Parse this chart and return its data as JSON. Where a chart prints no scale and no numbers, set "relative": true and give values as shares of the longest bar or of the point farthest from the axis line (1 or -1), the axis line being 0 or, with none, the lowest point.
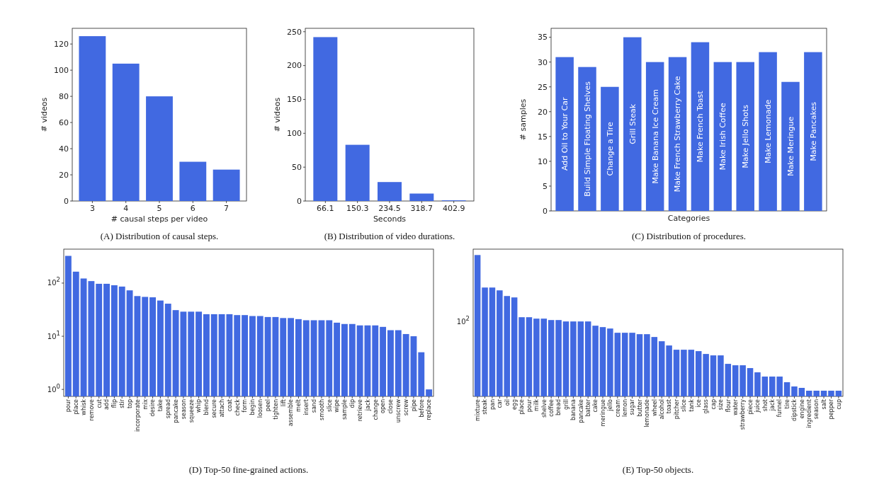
{
  "chart_data": [
    {
      "type": "bar",
      "categories": [
        "3",
        "4",
        "5",
        "6",
        "7"
      ],
      "values": [
        126,
        105,
        80,
        30,
        24
      ],
      "color": "#4169e1",
      "ylim": [
        0,
        132
      ],
      "yticks": [
        0,
        20,
        40,
        60,
        80,
        100,
        120
      ],
      "xlabel": "# causal steps per video",
      "ylabel": "# videos",
      "annotations": [
        "(A) Distribution of causal steps."
      ],
      "grid": false
    },
    {
      "type": "bar",
      "categories": [
        "66.1",
        "150.3",
        "234.5",
        "318.7",
        "402.9"
      ],
      "values": [
        242,
        83,
        28,
        11,
        1
      ],
      "color": "#4169e1",
      "ylim": [
        0,
        255
      ],
      "yticks": [
        0,
        50,
        100,
        150,
        200,
        250
      ],
      "xlabel": "Seconds",
      "ylabel": "# videos",
      "annotations": [
        "(B) Distribution of video durations."
      ],
      "grid": false
    },
    {
      "type": "bar",
      "categories": [
        "Add Oil to Your Car",
        "Build Simple Floating Shelves",
        "Change a Tire",
        "Grill Steak",
        "Make Banana Ice Cream",
        "Make French Strawberry Cake",
        "Make French Toast",
        "Make Irish Coffee",
        "Make Jello Shots",
        "Make Lemonade",
        "Make Meringue",
        "Make Pancakes"
      ],
      "values": [
        31,
        29,
        25,
        35,
        30,
        31,
        34,
        30,
        30,
        32,
        26,
        32
      ],
      "color": "#4169e1",
      "ylim": [
        0,
        36.8
      ],
      "yticks": [
        0,
        5,
        10,
        15,
        20,
        25,
        30,
        35
      ],
      "xlabel": "Categories",
      "ylabel": "# samples",
      "annotations": [
        "(C) Distribution of procedures."
      ],
      "grid": false
    },
    {
      "type": "bar",
      "log": true,
      "categories": [
        "pour",
        "place",
        "whisk",
        "remove",
        "cut",
        "add",
        "flip",
        "stir",
        "top",
        "incorporate",
        "mix",
        "desire",
        "take",
        "spread",
        "pancake",
        "season",
        "squeeze",
        "whip",
        "blend",
        "secure",
        "attach",
        "coat",
        "check",
        "form",
        "begin",
        "loosen",
        "peel",
        "tighten",
        "lift",
        "assemble",
        "melt",
        "insert",
        "sand",
        "smooth",
        "slice",
        "wipe",
        "sample",
        "dip",
        "retrieve",
        "jack",
        "change",
        "open",
        "close",
        "unscrew",
        "screw",
        "pipe",
        "before",
        "replace"
      ],
      "values": [
        325,
        164,
        122,
        109,
        97,
        97,
        91,
        86,
        73,
        57,
        55,
        54,
        47,
        41,
        31,
        29,
        29,
        29,
        26,
        26,
        26,
        26,
        25,
        25,
        24,
        24,
        23,
        23,
        22,
        22,
        21,
        20,
        20,
        20,
        20,
        18,
        17,
        17,
        16,
        16,
        16,
        15,
        13,
        13,
        11,
        10,
        5,
        1
      ],
      "color": "#4169e1",
      "ylim": [
        0.74,
        435
      ],
      "yticks": [
        {
          "value": 1,
          "label": "10$^{0}$"
        },
        {
          "value": 10,
          "label": "10$^{1}$"
        },
        {
          "value": 100,
          "label": "10$^{2}$"
        }
      ],
      "annotations": [
        "(D) Top-50 fine-grained actions."
      ],
      "grid": false
    },
    {
      "type": "bar",
      "relative": true,
      "categories": [
        "mixture",
        "steak",
        "pan",
        "car",
        "oil",
        "egg",
        "place",
        "pour",
        "milk",
        "shelve",
        "coffee",
        "bread",
        "grill",
        "banana",
        "pancake",
        "batter",
        "cake",
        "meringue",
        "jello",
        "cream",
        "lemon",
        "sugar",
        "butter",
        "lemonade",
        "wheel",
        "alcohol",
        "toast",
        "pitcher",
        "slice",
        "tank",
        "ice",
        "glass",
        "cap",
        "size",
        "flour",
        "water",
        "strawberry",
        "piece",
        "juice",
        "shot",
        "jack",
        "funnel",
        "tire",
        "dipstick",
        "engine",
        "ingredient",
        "season",
        "salt",
        "pepper",
        "cup"
      ],
      "values": [
        1,
        0.77,
        0.77,
        0.75,
        0.71,
        0.7,
        0.56,
        0.56,
        0.55,
        0.55,
        0.54,
        0.54,
        0.53,
        0.53,
        0.53,
        0.53,
        0.5,
        0.49,
        0.48,
        0.45,
        0.45,
        0.45,
        0.44,
        0.44,
        0.42,
        0.39,
        0.36,
        0.33,
        0.33,
        0.33,
        0.32,
        0.3,
        0.29,
        0.29,
        0.23,
        0.22,
        0.22,
        0.2,
        0.17,
        0.14,
        0.14,
        0.14,
        0.1,
        0.07,
        0.06,
        0.04,
        0.04,
        0.04,
        0.04,
        0.04
      ],
      "color": "#4169e1",
      "annotations": [
        "(E) Top-50 objects.",
        "10$^{2}$"
      ],
      "grid": false
    }
  ]
}
